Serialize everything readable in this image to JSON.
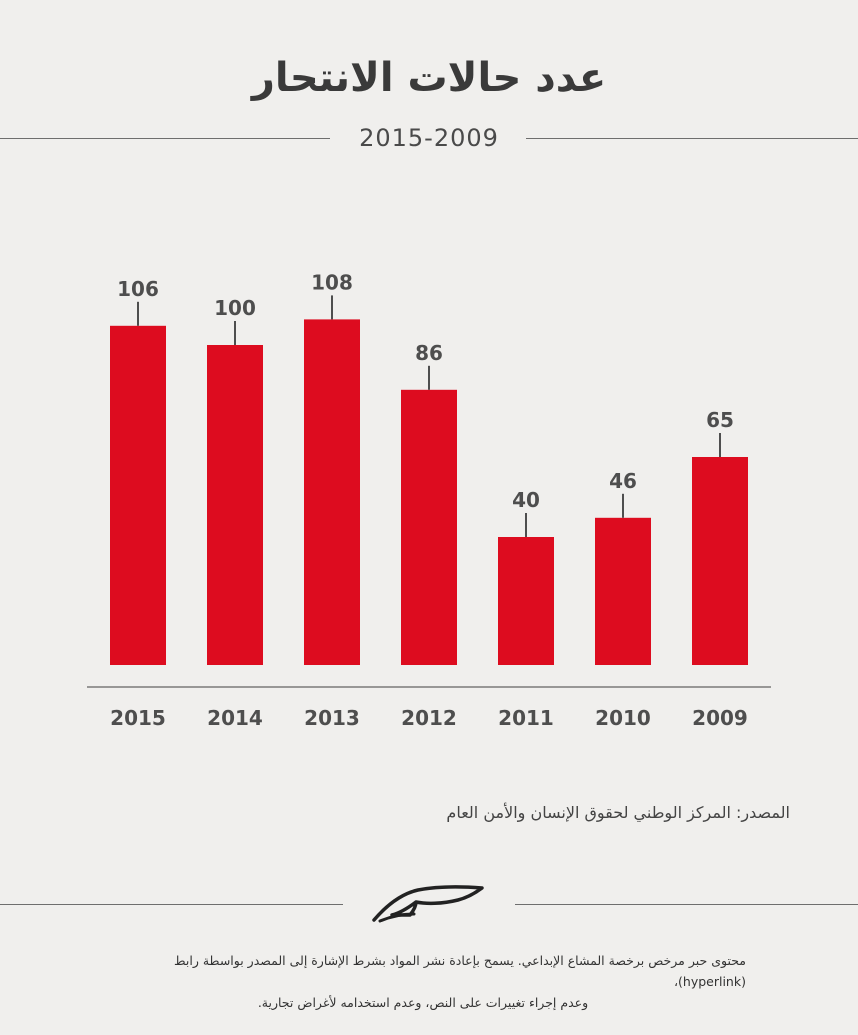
{
  "title": "عدد حالات الانتحار",
  "subtitle": "2015-2009",
  "colors": {
    "bar": "#dd0c1f",
    "axis": "#7a7a7a",
    "text": "#4e4e4e"
  },
  "chart_data": {
    "type": "bar",
    "title": "عدد حالات الانتحار",
    "subtitle": "2015-2009",
    "categories": [
      "2015",
      "2014",
      "2013",
      "2012",
      "2011",
      "2010",
      "2009"
    ],
    "values": [
      106,
      100,
      108,
      86,
      40,
      46,
      65
    ],
    "xlabel": "",
    "ylabel": "",
    "ylim": [
      0,
      120
    ],
    "grid": false,
    "legend": "none"
  },
  "source": "المصدر: المركز الوطني لحقوق الإنسان والأمن العام",
  "logo_icon": "hiber-logo-icon",
  "license": {
    "line1": "محتوى حبر مرخص برخصة المشاع الإبداعي. يسمح بإعادة نشر المواد بشرط الإشارة إلى المصدر بواسطة رابط (hyperlink)،",
    "line2": "وعدم إجراء تغييرات على النص، وعدم استخدامه لأغراض تجارية."
  }
}
